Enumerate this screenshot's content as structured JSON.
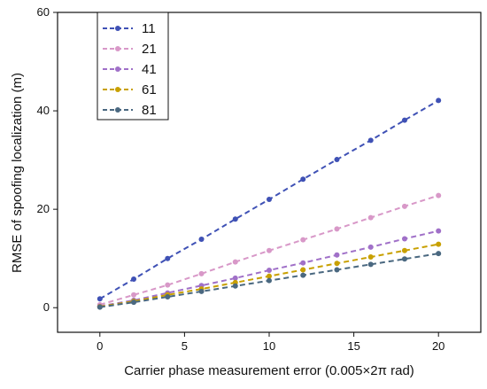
{
  "chart_data": {
    "type": "line",
    "title": "",
    "xlabel": "Carrier phase measurement error (0.005×2π rad)",
    "ylabel": "RMSE of spoofing localization (m)",
    "xlim": [
      -2.5,
      22.5
    ],
    "ylim": [
      -5,
      60
    ],
    "xticks": [
      "0",
      "5",
      "10",
      "15",
      "20"
    ],
    "yticks": [
      "0",
      "20",
      "40",
      "60"
    ],
    "grid": false,
    "legend_position": "top-left",
    "x": [
      0,
      2,
      4,
      6,
      8,
      10,
      12,
      14,
      16,
      18,
      20
    ],
    "series": [
      {
        "name": "11",
        "color": "#3f51b5",
        "values": [
          1.8,
          5.8,
          10.0,
          13.9,
          18.0,
          22.0,
          26.1,
          30.1,
          34.0,
          38.1,
          42.1
        ]
      },
      {
        "name": "21",
        "color": "#d898c8",
        "values": [
          0.6,
          2.6,
          4.6,
          6.9,
          9.3,
          11.6,
          13.8,
          16.0,
          18.3,
          20.6,
          22.8
        ]
      },
      {
        "name": "41",
        "color": "#a070c8",
        "values": [
          0.3,
          1.5,
          3.0,
          4.5,
          6.0,
          7.6,
          9.1,
          10.7,
          12.3,
          14.0,
          15.6
        ]
      },
      {
        "name": "61",
        "color": "#c8a000",
        "values": [
          0.2,
          1.3,
          2.6,
          3.8,
          5.1,
          6.4,
          7.7,
          9.0,
          10.3,
          11.6,
          12.9
        ]
      },
      {
        "name": "81",
        "color": "#4a6880",
        "values": [
          0.1,
          1.1,
          2.2,
          3.3,
          4.4,
          5.5,
          6.6,
          7.7,
          8.8,
          9.9,
          11.0
        ]
      }
    ]
  }
}
